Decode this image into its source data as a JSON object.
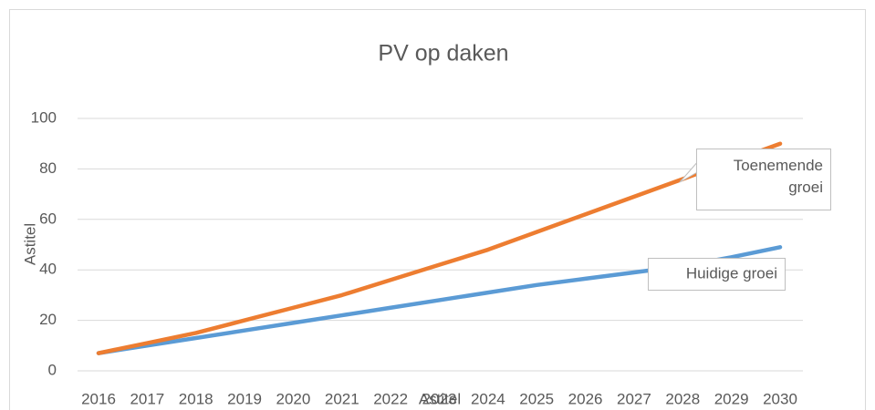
{
  "chart_data": {
    "type": "line",
    "title": "PV op daken",
    "ylabel": "Astitel",
    "xlabel": "Astitel",
    "categories": [
      "2016",
      "2017",
      "2018",
      "2019",
      "2020",
      "2021",
      "2022",
      "2023",
      "2024",
      "2025",
      "2026",
      "2027",
      "2028",
      "2029",
      "2030"
    ],
    "series": [
      {
        "name": "Huidige groei",
        "color": "#5b9bd5",
        "values": [
          7,
          10,
          13,
          16,
          19,
          22,
          25,
          28,
          31,
          34,
          36.5,
          39,
          41.5,
          45,
          49
        ]
      },
      {
        "name": "Toenemende groei",
        "color": "#ed7d31",
        "values": [
          7,
          11,
          15,
          20,
          25,
          30,
          36,
          42,
          48,
          55,
          62,
          69,
          76,
          83,
          90
        ]
      }
    ],
    "ylim": [
      0,
      100
    ],
    "yticks": [
      0,
      20,
      40,
      60,
      80,
      100
    ],
    "grid": true
  }
}
